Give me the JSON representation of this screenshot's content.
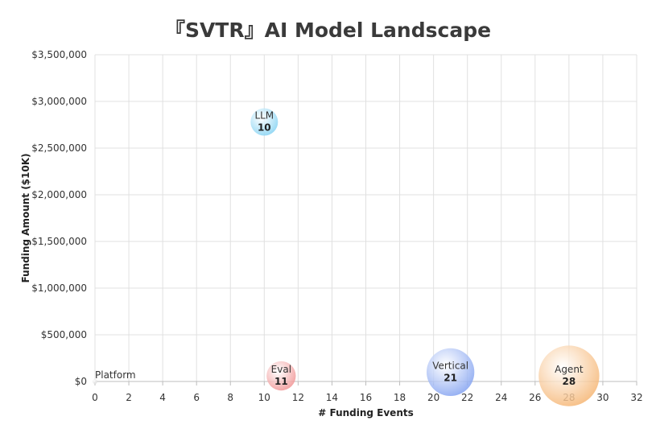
{
  "chart_data": {
    "type": "scatter",
    "title": "『SVTR』AI Model Landscape",
    "xlabel": "# Funding Events",
    "ylabel": "Funding Amount ($10K)",
    "xlim": [
      0,
      32
    ],
    "ylim": [
      0,
      3500000
    ],
    "xticks": [
      0,
      2,
      4,
      6,
      8,
      10,
      12,
      14,
      16,
      18,
      20,
      22,
      24,
      26,
      28,
      30,
      32
    ],
    "yticks": [
      0,
      500000,
      1000000,
      1500000,
      2000000,
      2500000,
      3000000,
      3500000
    ],
    "ytick_labels": [
      "$0",
      "$500,000",
      "$1,000,000",
      "$1,500,000",
      "$2,000,000",
      "$2,500,000",
      "$3,000,000",
      "$3,500,000"
    ],
    "grid": true,
    "points": [
      {
        "name": "Platform",
        "x": 0,
        "y": 0,
        "size_label": "",
        "color": "#d9d9d9"
      },
      {
        "name": "LLM",
        "x": 10,
        "y": 2780000,
        "size_label": "10",
        "color": "#7fd0f2"
      },
      {
        "name": "Eval",
        "x": 11,
        "y": 60000,
        "size_label": "11",
        "color": "#f08f8f"
      },
      {
        "name": "Vertical",
        "x": 21,
        "y": 100000,
        "size_label": "21",
        "color": "#7f9ff0"
      },
      {
        "name": "Agent",
        "x": 28,
        "y": 60000,
        "size_label": "28",
        "color": "#f5b36f"
      }
    ]
  }
}
